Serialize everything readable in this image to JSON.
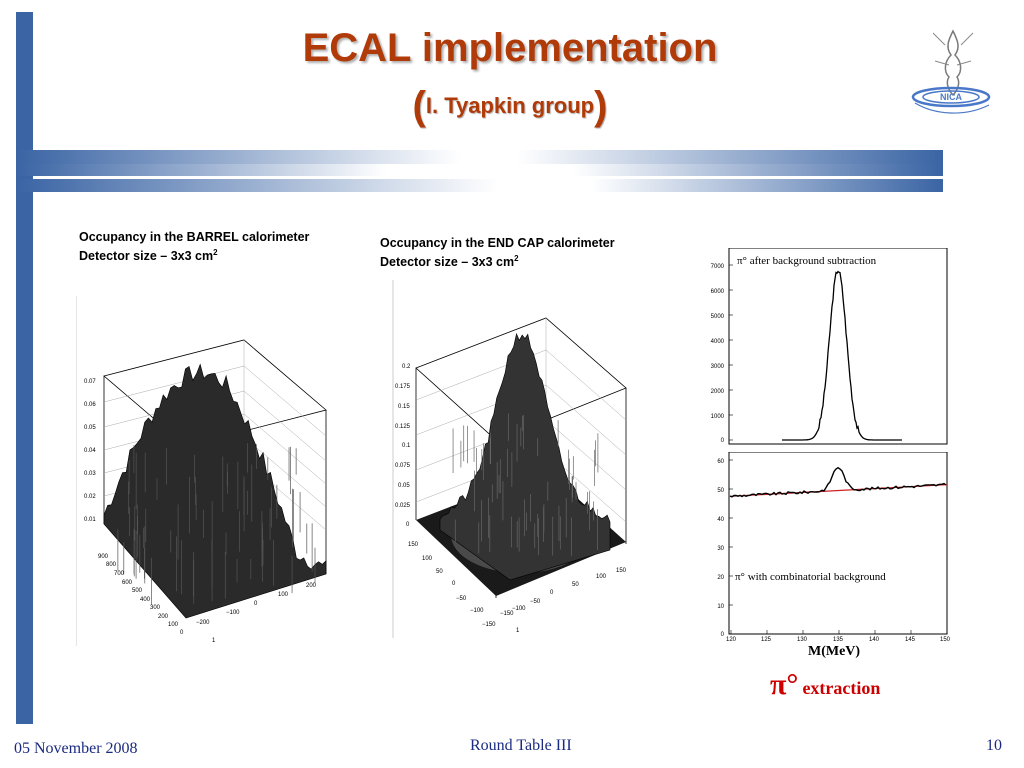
{
  "title": "ECAL implementation",
  "subtitle": {
    "open": "(",
    "text": "I. Tyapkin group",
    "close": ")"
  },
  "barrel": {
    "caption_line1": "Occupancy in the BARREL calorimeter",
    "caption_line2": "Detector  size – 3x3 cm",
    "caption_sup": "2",
    "z_ticks": [
      "0.07",
      "0.06",
      "0.05",
      "0.04",
      "0.03",
      "0.02",
      "0.01"
    ],
    "y_ticks": [
      "900",
      "800",
      "700",
      "600",
      "500",
      "400",
      "300",
      "200",
      "100",
      "0"
    ],
    "x_ticks": [
      "−200",
      "−100",
      "0",
      "100",
      "200"
    ],
    "corner_tick": "1"
  },
  "endcap": {
    "caption_line1": "Occupancy in the END CAP calorimeter",
    "caption_line2": "Detector  size – 3x3 cm",
    "caption_sup": "2",
    "z_ticks": [
      "0.2",
      "0.175",
      "0.15",
      "0.125",
      "0.1",
      "0.075",
      "0.05",
      "0.025",
      "0"
    ],
    "y_ticks": [
      "150",
      "100",
      "50",
      "0",
      "−50",
      "−100",
      "−150"
    ],
    "x_ticks": [
      "−150",
      "−100",
      "−50",
      "0",
      "50",
      "100",
      "150"
    ],
    "corner_tick": "1"
  },
  "pi0_top": {
    "label": "π° after background subtraction",
    "y_ticks": [
      "7000",
      "6000",
      "5000",
      "4000",
      "3000",
      "2000",
      "1000",
      "0"
    ]
  },
  "pi0_bottom": {
    "label": "π° with combinatorial background",
    "y_ticks": [
      "60",
      "50",
      "40",
      "30",
      "20",
      "10",
      "0"
    ],
    "x_ticks": [
      "120",
      "125",
      "130",
      "135",
      "140",
      "145",
      "150"
    ]
  },
  "xaxis_label": "M(MeV)",
  "extraction": {
    "symbol": "π°",
    "text": "extraction"
  },
  "footer": {
    "date": "05 November 2008",
    "center": "Round Table III",
    "page": "10"
  },
  "colors": {
    "bar": "#3a64a4",
    "title": "#b03a08",
    "footer": "#1a2a80",
    "fit": "#d02020"
  },
  "logo_text": "NICA"
}
